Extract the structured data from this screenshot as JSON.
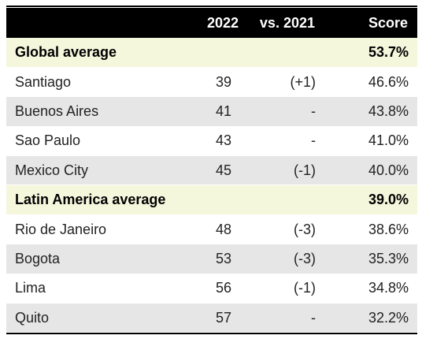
{
  "chart_data": {
    "type": "table",
    "columns": [
      "",
      "2022",
      "vs. 2021",
      "Score"
    ],
    "rows": [
      {
        "kind": "average",
        "name": "Global average",
        "rank": "",
        "change": "",
        "score": "53.7%"
      },
      {
        "kind": "city",
        "name": "Santiago",
        "rank": "39",
        "change": "(+1)",
        "score": "46.6%"
      },
      {
        "kind": "city",
        "name": "Buenos Aires",
        "rank": "41",
        "change": "-",
        "score": "43.8%"
      },
      {
        "kind": "city",
        "name": "Sao Paulo",
        "rank": "43",
        "change": "-",
        "score": "41.0%"
      },
      {
        "kind": "city",
        "name": "Mexico City",
        "rank": "45",
        "change": "(-1)",
        "score": "40.0%"
      },
      {
        "kind": "average",
        "name": "Latin America average",
        "rank": "",
        "change": "",
        "score": "39.0%"
      },
      {
        "kind": "city",
        "name": "Rio de Janeiro",
        "rank": "48",
        "change": "(-3)",
        "score": "38.6%"
      },
      {
        "kind": "city",
        "name": "Bogota",
        "rank": "53",
        "change": "(-3)",
        "score": "35.3%"
      },
      {
        "kind": "city",
        "name": "Lima",
        "rank": "56",
        "change": "(-1)",
        "score": "34.8%"
      },
      {
        "kind": "city",
        "name": "Quito",
        "rank": "57",
        "change": "-",
        "score": "32.2%"
      }
    ]
  },
  "colors": {
    "header_bg": "#000000",
    "header_text": "#ffffff",
    "average_row_bg": "#f5f7dd",
    "alt_row_bg": "#e6e6e6",
    "row_bg": "#ffffff"
  }
}
